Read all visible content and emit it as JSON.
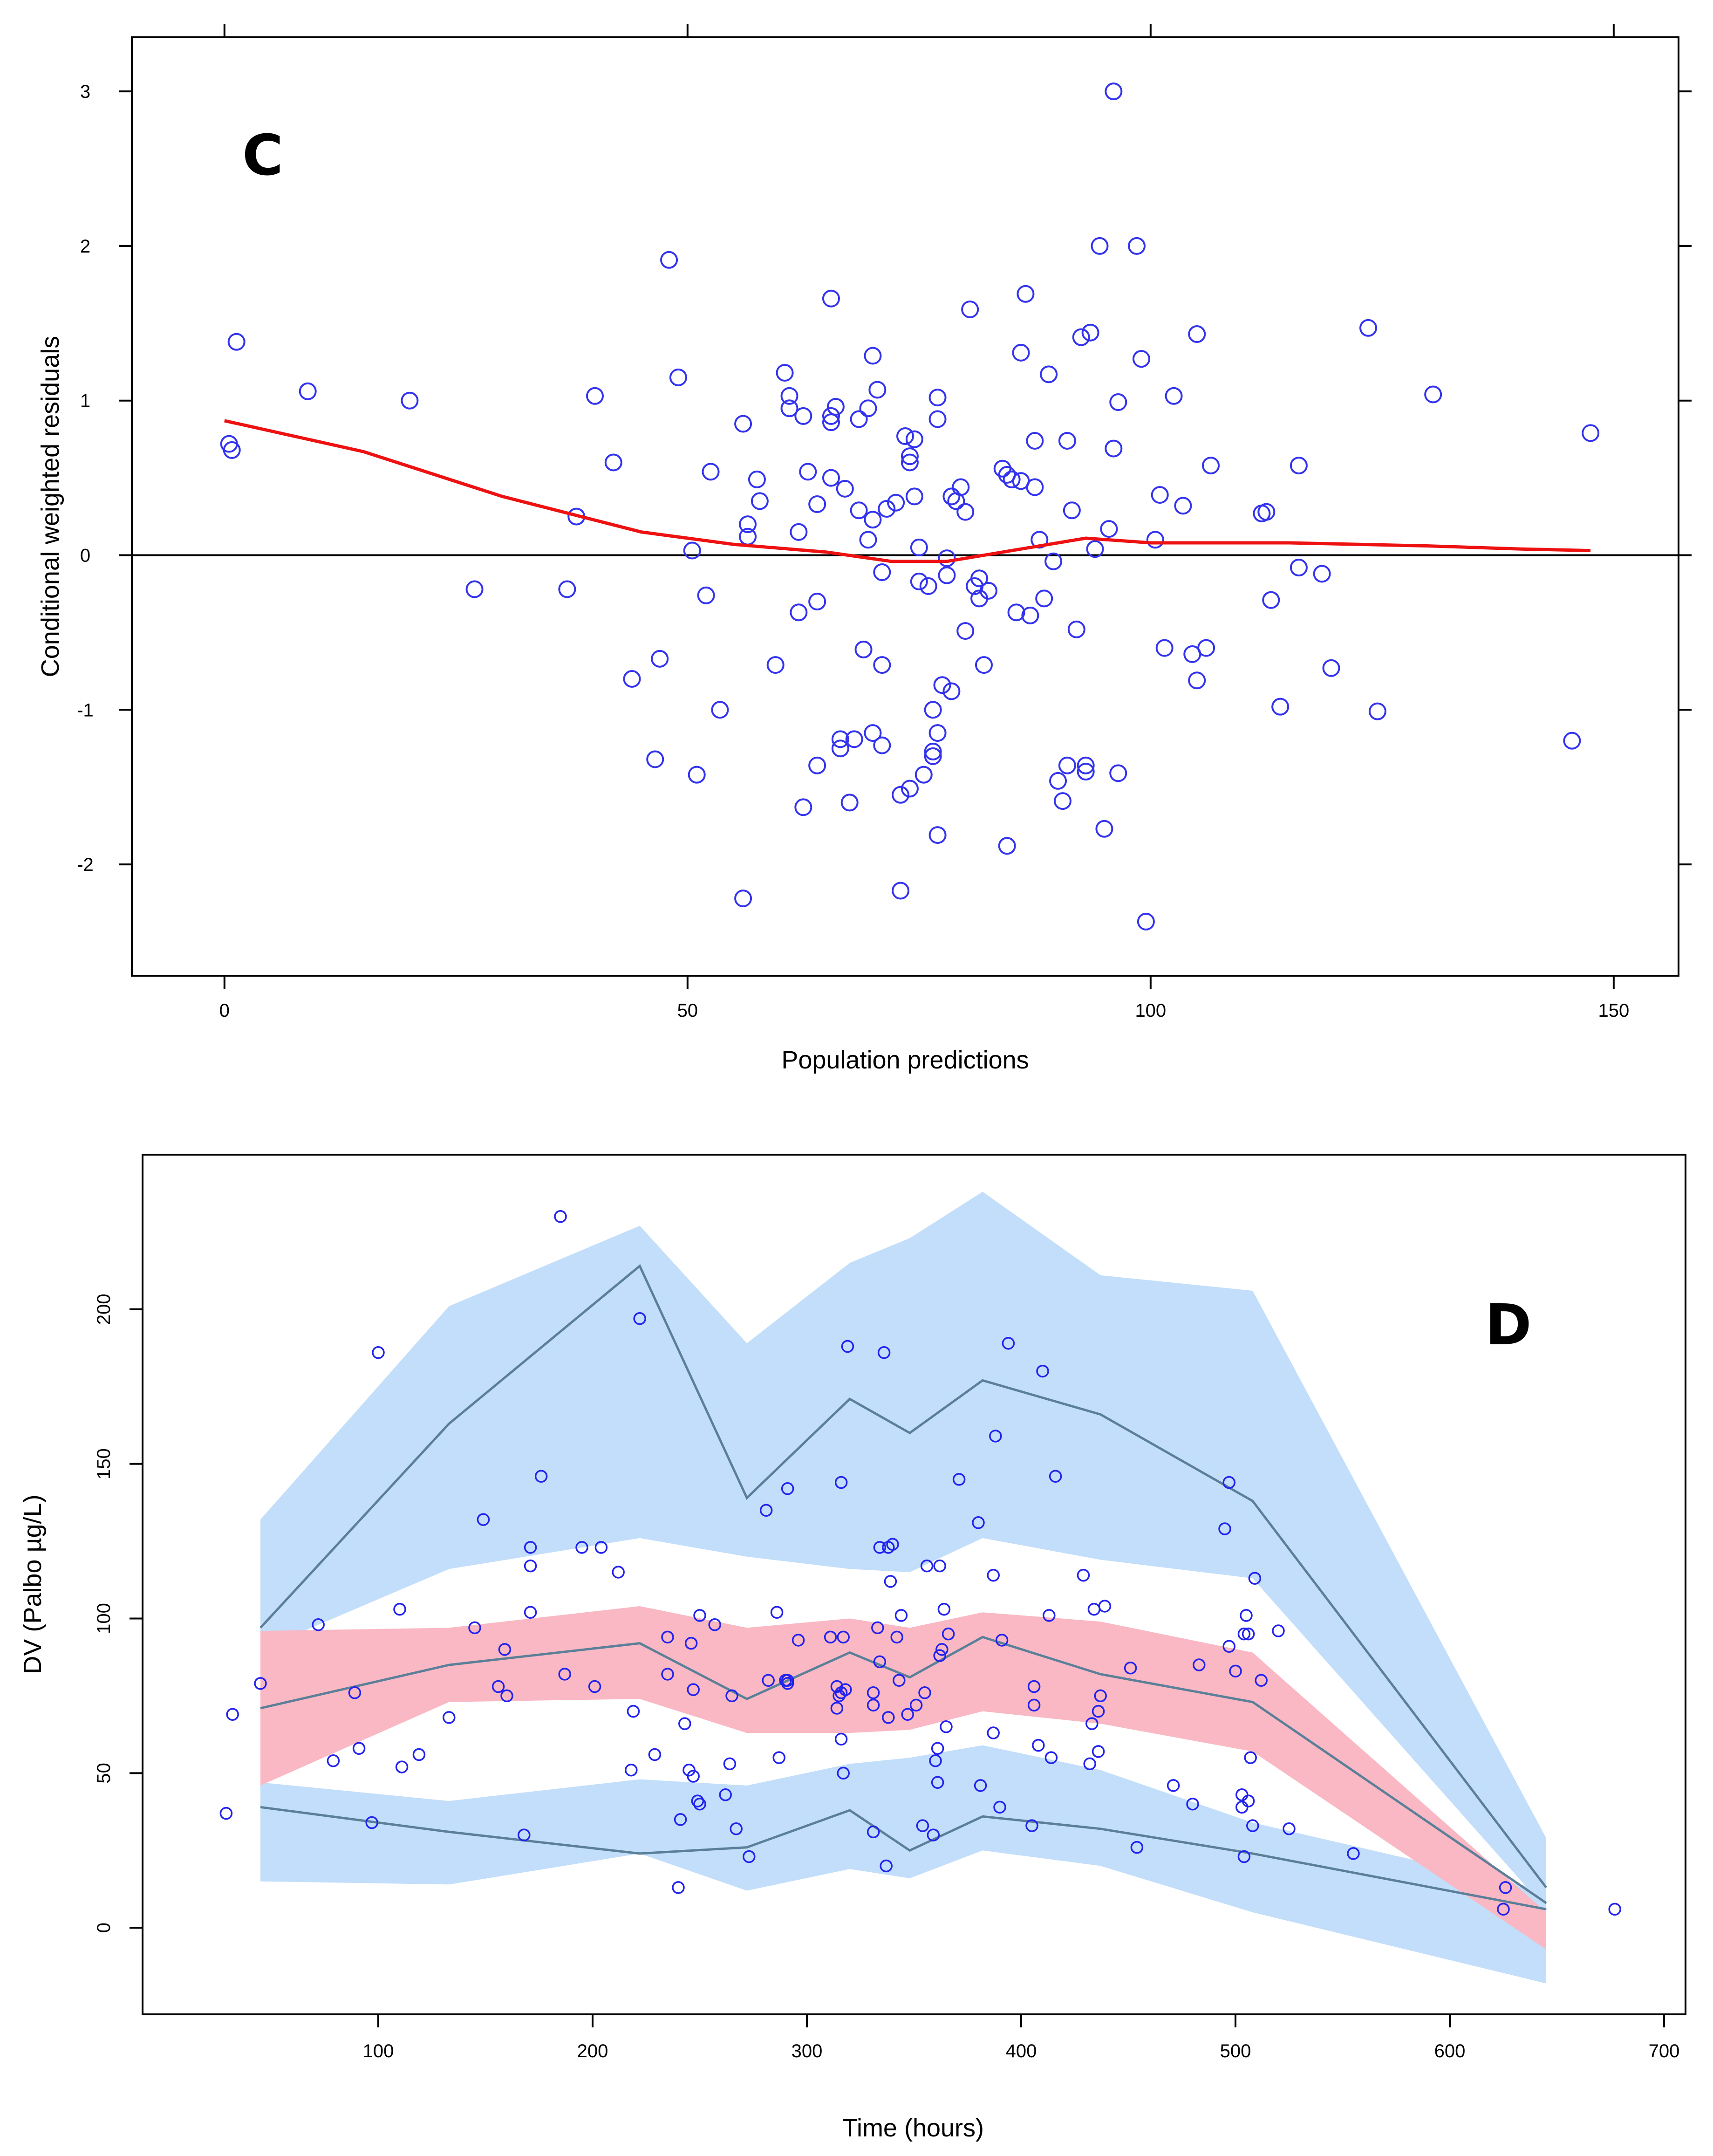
{
  "chart_data": [
    {
      "type": "scatter",
      "panel_label": "C",
      "xlabel": "Population predictions",
      "ylabel": "Conditional weighted residuals",
      "xlim": [
        -10,
        157
      ],
      "ylim": [
        -2.72,
        3.35
      ],
      "xticks": [
        0,
        50,
        100,
        150
      ],
      "yticks": [
        -2,
        -1,
        0,
        1,
        2,
        3
      ],
      "colors": {
        "points": "#3333ee",
        "smooth": "#ee1111",
        "zero_line": "#000000"
      },
      "points": [
        [
          0.5,
          0.72
        ],
        [
          0.8,
          0.68
        ],
        [
          1.3,
          1.38
        ],
        [
          9,
          1.06
        ],
        [
          20,
          1.0
        ],
        [
          27,
          -0.22
        ],
        [
          37,
          -0.22
        ],
        [
          38,
          0.25
        ],
        [
          40,
          1.03
        ],
        [
          42,
          0.6
        ],
        [
          44,
          -0.8
        ],
        [
          47,
          -0.67
        ],
        [
          46.5,
          -1.32
        ],
        [
          48,
          1.91
        ],
        [
          49,
          1.15
        ],
        [
          50.5,
          0.03
        ],
        [
          51,
          -1.42
        ],
        [
          52,
          -0.26
        ],
        [
          52.5,
          0.54
        ],
        [
          53.5,
          -1.0
        ],
        [
          56,
          0.85
        ],
        [
          56,
          -2.22
        ],
        [
          56.5,
          0.2
        ],
        [
          56.5,
          0.12
        ],
        [
          57.5,
          0.49
        ],
        [
          57.8,
          0.35
        ],
        [
          59.5,
          -0.71
        ],
        [
          60.5,
          1.18
        ],
        [
          61,
          1.03
        ],
        [
          61,
          0.95
        ],
        [
          62,
          0.15
        ],
        [
          62,
          -0.37
        ],
        [
          62.5,
          0.9
        ],
        [
          62.5,
          -1.63
        ],
        [
          63,
          0.54
        ],
        [
          64,
          0.33
        ],
        [
          64,
          -0.3
        ],
        [
          64,
          -1.36
        ],
        [
          65.5,
          1.66
        ],
        [
          65.5,
          0.86
        ],
        [
          65.5,
          0.5
        ],
        [
          65.5,
          0.9
        ],
        [
          66,
          0.96
        ],
        [
          66.5,
          -1.25
        ],
        [
          66.5,
          -1.19
        ],
        [
          67,
          0.43
        ],
        [
          67.5,
          -1.6
        ],
        [
          68,
          -1.19
        ],
        [
          68.5,
          0.88
        ],
        [
          68.5,
          0.29
        ],
        [
          69,
          -0.61
        ],
        [
          69.5,
          0.1
        ],
        [
          69.5,
          0.95
        ],
        [
          70,
          1.29
        ],
        [
          70,
          0.23
        ],
        [
          70,
          -1.15
        ],
        [
          70.5,
          1.07
        ],
        [
          71,
          -1.23
        ],
        [
          71,
          -0.11
        ],
        [
          71,
          -0.71
        ],
        [
          71.5,
          0.3
        ],
        [
          72.5,
          0.34
        ],
        [
          73,
          -2.17
        ],
        [
          73,
          -1.55
        ],
        [
          73.5,
          0.77
        ],
        [
          74,
          -1.51
        ],
        [
          74,
          0.64
        ],
        [
          74,
          0.6
        ],
        [
          74.5,
          0.38
        ],
        [
          74.5,
          0.75
        ],
        [
          75,
          0.05
        ],
        [
          75,
          -0.17
        ],
        [
          75.5,
          -1.42
        ],
        [
          76,
          -0.2
        ],
        [
          76.5,
          -1.3
        ],
        [
          76.5,
          -1.27
        ],
        [
          76.5,
          -1.0
        ],
        [
          77,
          1.02
        ],
        [
          77,
          0.88
        ],
        [
          77,
          -1.15
        ],
        [
          77,
          -1.81
        ],
        [
          77.5,
          -0.84
        ],
        [
          78,
          -0.13
        ],
        [
          78,
          -0.02
        ],
        [
          78.5,
          -0.88
        ],
        [
          78.5,
          0.38
        ],
        [
          79,
          0.35
        ],
        [
          79.5,
          0.44
        ],
        [
          80,
          0.28
        ],
        [
          80,
          -0.49
        ],
        [
          80.5,
          1.59
        ],
        [
          81,
          -0.2
        ],
        [
          81.5,
          -0.15
        ],
        [
          81.5,
          -0.28
        ],
        [
          82,
          -0.71
        ],
        [
          82.5,
          -0.23
        ],
        [
          84,
          0.56
        ],
        [
          84.5,
          0.52
        ],
        [
          84.5,
          -1.88
        ],
        [
          85,
          0.49
        ],
        [
          85.5,
          -0.37
        ],
        [
          86,
          1.31
        ],
        [
          86,
          0.48
        ],
        [
          86.5,
          1.69
        ],
        [
          87,
          -0.39
        ],
        [
          87.5,
          0.74
        ],
        [
          87.5,
          0.44
        ],
        [
          88,
          0.1
        ],
        [
          88.5,
          -0.28
        ],
        [
          89,
          1.17
        ],
        [
          89.5,
          -0.04
        ],
        [
          90,
          -1.46
        ],
        [
          90.5,
          -1.59
        ],
        [
          91,
          0.74
        ],
        [
          91,
          -1.36
        ],
        [
          91.5,
          0.29
        ],
        [
          92,
          -0.48
        ],
        [
          92.5,
          1.41
        ],
        [
          93,
          -1.4
        ],
        [
          93,
          -1.36
        ],
        [
          93.5,
          1.44
        ],
        [
          94,
          0.04
        ],
        [
          94.5,
          2.0
        ],
        [
          95,
          -1.77
        ],
        [
          95.5,
          0.17
        ],
        [
          96,
          0.69
        ],
        [
          96,
          3.0
        ],
        [
          96.5,
          0.99
        ],
        [
          96.5,
          -1.41
        ],
        [
          98.5,
          2.0
        ],
        [
          99,
          1.27
        ],
        [
          99.5,
          -2.37
        ],
        [
          100.5,
          0.1
        ],
        [
          101,
          0.39
        ],
        [
          101.5,
          -0.6
        ],
        [
          102.5,
          1.03
        ],
        [
          103.5,
          0.32
        ],
        [
          104.5,
          -0.64
        ],
        [
          105,
          1.43
        ],
        [
          105,
          -0.81
        ],
        [
          106,
          -0.6
        ],
        [
          106.5,
          0.58
        ],
        [
          112,
          0.27
        ],
        [
          112.5,
          0.28
        ],
        [
          113,
          -0.29
        ],
        [
          114,
          -0.98
        ],
        [
          116,
          -0.08
        ],
        [
          116,
          0.58
        ],
        [
          118.5,
          -0.12
        ],
        [
          119.5,
          -0.73
        ],
        [
          123.5,
          1.47
        ],
        [
          124.5,
          -1.01
        ],
        [
          130.5,
          1.04
        ],
        [
          145.5,
          -1.2
        ],
        [
          147.5,
          0.79
        ]
      ],
      "smooth_line": [
        [
          0,
          0.87
        ],
        [
          15,
          0.67
        ],
        [
          30,
          0.38
        ],
        [
          45,
          0.15
        ],
        [
          55,
          0.07
        ],
        [
          65,
          0.02
        ],
        [
          72,
          -0.04
        ],
        [
          78,
          -0.04
        ],
        [
          85,
          0.03
        ],
        [
          93,
          0.11
        ],
        [
          100,
          0.08
        ],
        [
          115,
          0.08
        ],
        [
          130,
          0.06
        ],
        [
          140,
          0.04
        ],
        [
          147.5,
          0.03
        ]
      ]
    },
    {
      "type": "scatter",
      "panel_label": "D",
      "xlabel": "Time (hours)",
      "ylabel": "DV (Palbo µg/L)",
      "xlim": [
        -10,
        710
      ],
      "ylim": [
        -28,
        250
      ],
      "xticks": [
        100,
        200,
        300,
        400,
        500,
        600,
        700
      ],
      "yticks": [
        0,
        50,
        100,
        150,
        200
      ],
      "colors": {
        "points": "#2222ee",
        "median_band": "#f9b8c3",
        "outer_band": "#c2defa",
        "lines": "#5b7f99"
      },
      "bins_x": [
        45,
        133,
        222,
        272,
        320,
        348,
        382,
        437,
        508,
        645
      ],
      "upper_band": {
        "hi": [
          132,
          201,
          227,
          189,
          215,
          223,
          238,
          211,
          206,
          29
        ],
        "lo": [
          90,
          116,
          126,
          120,
          116,
          115,
          126,
          119,
          113,
          6
        ]
      },
      "median_band": {
        "hi": [
          96,
          97,
          104,
          97,
          100,
          97,
          102,
          99,
          89,
          5
        ],
        "lo": [
          46,
          73,
          74,
          63,
          63,
          64,
          70,
          66,
          57,
          -7
        ]
      },
      "lower_band": {
        "hi": [
          47,
          41,
          48,
          46,
          53,
          55,
          59,
          51,
          34,
          12
        ],
        "lo": [
          15,
          14,
          24,
          12,
          19,
          16,
          25,
          20,
          5,
          -18
        ]
      },
      "upper_line": [
        97,
        163,
        214,
        139,
        171,
        160,
        177,
        166,
        138,
        13
      ],
      "median_line": [
        71,
        85,
        92,
        74,
        89,
        81,
        94,
        82,
        73,
        8
      ],
      "lower_line": [
        39,
        31,
        24,
        26,
        38,
        25,
        36,
        32,
        24,
        6
      ],
      "points": [
        [
          29,
          37
        ],
        [
          32,
          69
        ],
        [
          45,
          79
        ],
        [
          72,
          98
        ],
        [
          79,
          54
        ],
        [
          89,
          76
        ],
        [
          91,
          58
        ],
        [
          97,
          34
        ],
        [
          100,
          186
        ],
        [
          110,
          103
        ],
        [
          111,
          52
        ],
        [
          119,
          56
        ],
        [
          133,
          68
        ],
        [
          145,
          97
        ],
        [
          149,
          132
        ],
        [
          156,
          78
        ],
        [
          159,
          90
        ],
        [
          160,
          75
        ],
        [
          168,
          30
        ],
        [
          171,
          102
        ],
        [
          171,
          117
        ],
        [
          171,
          123
        ],
        [
          176,
          146
        ],
        [
          185,
          230
        ],
        [
          187,
          82
        ],
        [
          195,
          123
        ],
        [
          201,
          78
        ],
        [
          204,
          123
        ],
        [
          212,
          115
        ],
        [
          218,
          51
        ],
        [
          219,
          70
        ],
        [
          222,
          197
        ],
        [
          229,
          56
        ],
        [
          235,
          94
        ],
        [
          235,
          82
        ],
        [
          240,
          13
        ],
        [
          241,
          35
        ],
        [
          243,
          66
        ],
        [
          245,
          51
        ],
        [
          246,
          92
        ],
        [
          247,
          77
        ],
        [
          247,
          49
        ],
        [
          249,
          41
        ],
        [
          250,
          40
        ],
        [
          250,
          101
        ],
        [
          257,
          98
        ],
        [
          262,
          43
        ],
        [
          264,
          53
        ],
        [
          265,
          75
        ],
        [
          267,
          32
        ],
        [
          273,
          23
        ],
        [
          281,
          135
        ],
        [
          282,
          80
        ],
        [
          286,
          102
        ],
        [
          287,
          55
        ],
        [
          290,
          80
        ],
        [
          291,
          79
        ],
        [
          291,
          80
        ],
        [
          291,
          142
        ],
        [
          296,
          93
        ],
        [
          311,
          94
        ],
        [
          314,
          78
        ],
        [
          314,
          71
        ],
        [
          315,
          75
        ],
        [
          316,
          61
        ],
        [
          316,
          144
        ],
        [
          316,
          76
        ],
        [
          317,
          50
        ],
        [
          317,
          94
        ],
        [
          318,
          77
        ],
        [
          319,
          188
        ],
        [
          331,
          31
        ],
        [
          331,
          76
        ],
        [
          331,
          72
        ],
        [
          333,
          97
        ],
        [
          334,
          86
        ],
        [
          334,
          123
        ],
        [
          336,
          186
        ],
        [
          337,
          20
        ],
        [
          338,
          123
        ],
        [
          338,
          68
        ],
        [
          339,
          112
        ],
        [
          340,
          124
        ],
        [
          342,
          94
        ],
        [
          343,
          80
        ],
        [
          344,
          101
        ],
        [
          347,
          69
        ],
        [
          351,
          72
        ],
        [
          354,
          33
        ],
        [
          355,
          76
        ],
        [
          356,
          117
        ],
        [
          359,
          30
        ],
        [
          360,
          54
        ],
        [
          361,
          47
        ],
        [
          361,
          58
        ],
        [
          362,
          117
        ],
        [
          362,
          88
        ],
        [
          363,
          90
        ],
        [
          364,
          103
        ],
        [
          365,
          65
        ],
        [
          366,
          95
        ],
        [
          371,
          145
        ],
        [
          380,
          131
        ],
        [
          381,
          46
        ],
        [
          387,
          63
        ],
        [
          387,
          114
        ],
        [
          388,
          159
        ],
        [
          390,
          39
        ],
        [
          391,
          93
        ],
        [
          394,
          189
        ],
        [
          405,
          33
        ],
        [
          406,
          78
        ],
        [
          406,
          72
        ],
        [
          408,
          59
        ],
        [
          410,
          180
        ],
        [
          413,
          101
        ],
        [
          414,
          55
        ],
        [
          416,
          146
        ],
        [
          429,
          114
        ],
        [
          432,
          53
        ],
        [
          433,
          66
        ],
        [
          434,
          103
        ],
        [
          436,
          57
        ],
        [
          436,
          70
        ],
        [
          437,
          75
        ],
        [
          439,
          104
        ],
        [
          451,
          84
        ],
        [
          454,
          26
        ],
        [
          471,
          46
        ],
        [
          480,
          40
        ],
        [
          483,
          85
        ],
        [
          495,
          129
        ],
        [
          497,
          144
        ],
        [
          497,
          91
        ],
        [
          500,
          83
        ],
        [
          503,
          43
        ],
        [
          503,
          39
        ],
        [
          504,
          95
        ],
        [
          504,
          23
        ],
        [
          505,
          101
        ],
        [
          506,
          41
        ],
        [
          506,
          95
        ],
        [
          507,
          55
        ],
        [
          508,
          33
        ],
        [
          509,
          113
        ],
        [
          512,
          80
        ],
        [
          520,
          96
        ],
        [
          525,
          32
        ],
        [
          555,
          24
        ],
        [
          625,
          6
        ],
        [
          626,
          13
        ],
        [
          677,
          6
        ]
      ]
    }
  ]
}
